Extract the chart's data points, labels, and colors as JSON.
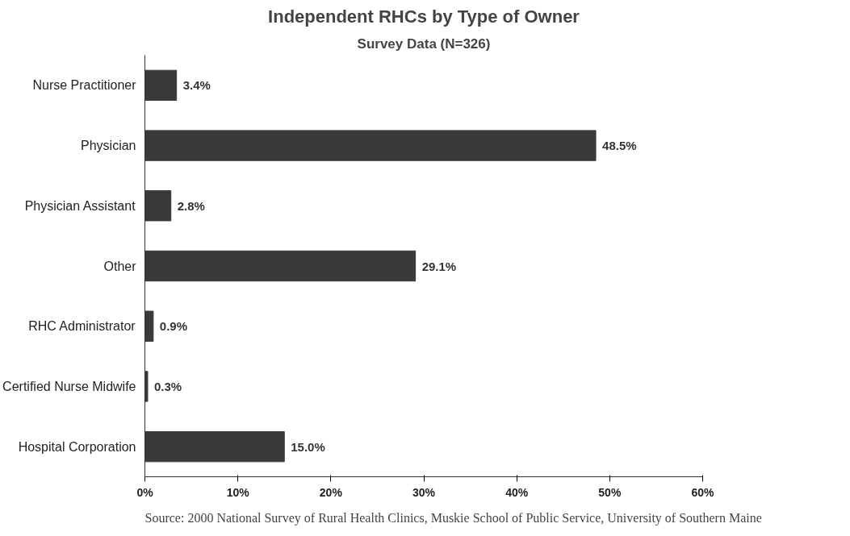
{
  "chart_data": {
    "type": "bar",
    "orientation": "horizontal",
    "title": "Independent RHCs by Type of Owner",
    "subtitle": "Survey Data (N=326)",
    "categories": [
      "Nurse Practitioner",
      "Physician",
      "Physician Assistant",
      "Other",
      "RHC Administrator",
      "Certified Nurse Midwife",
      "Hospital Corporation"
    ],
    "values": [
      3.4,
      48.5,
      2.8,
      29.1,
      0.9,
      0.3,
      15.0
    ],
    "value_labels": [
      "3.4%",
      "48.5%",
      "2.8%",
      "29.1%",
      "0.9%",
      "0.3%",
      "15.0%"
    ],
    "color": "#3a3a3a",
    "xlim": [
      0,
      60
    ],
    "xticks": [
      {
        "value": 0,
        "label": "0%"
      },
      {
        "value": 10,
        "label": "10%"
      },
      {
        "value": 20,
        "label": "20%"
      },
      {
        "value": 30,
        "label": "30%"
      },
      {
        "value": 40,
        "label": "40%"
      },
      {
        "value": 50,
        "label": "50%"
      },
      {
        "value": 60,
        "label": "60%"
      }
    ],
    "grid": false,
    "annotations": [
      "Source: 2000 National Survey of Rural Health Clinics, Muskie School of Public Service, University of Southern Maine"
    ]
  }
}
